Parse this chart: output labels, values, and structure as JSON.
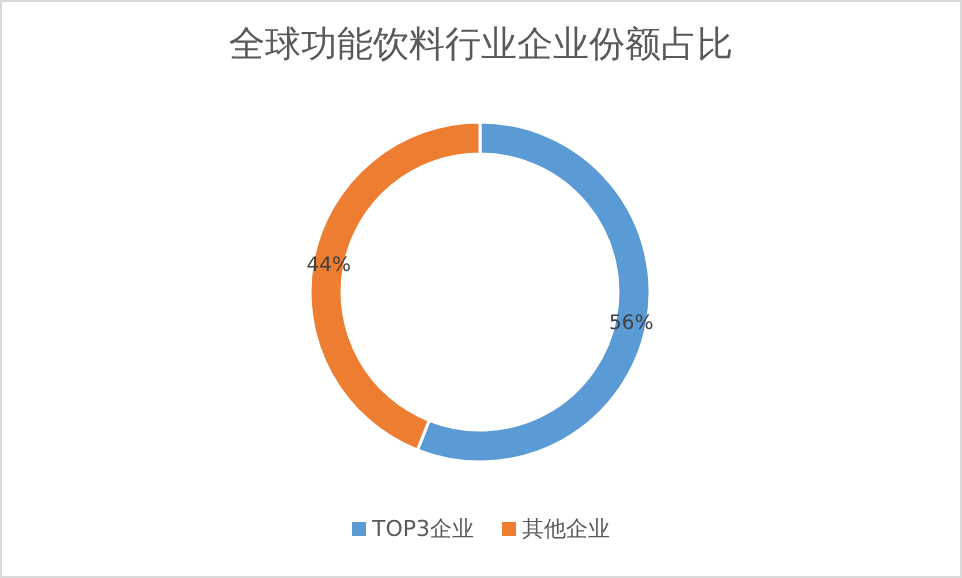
{
  "chart_data": {
    "type": "donut",
    "title": "全球功能饮料行业企业份额占比",
    "categories": [
      "TOP3企业",
      "其他企业"
    ],
    "values": [
      56,
      44
    ],
    "colors": [
      "#5b9bd5",
      "#ed7d31"
    ],
    "value_labels": [
      "56%",
      "44%"
    ],
    "legend": "bottom"
  }
}
